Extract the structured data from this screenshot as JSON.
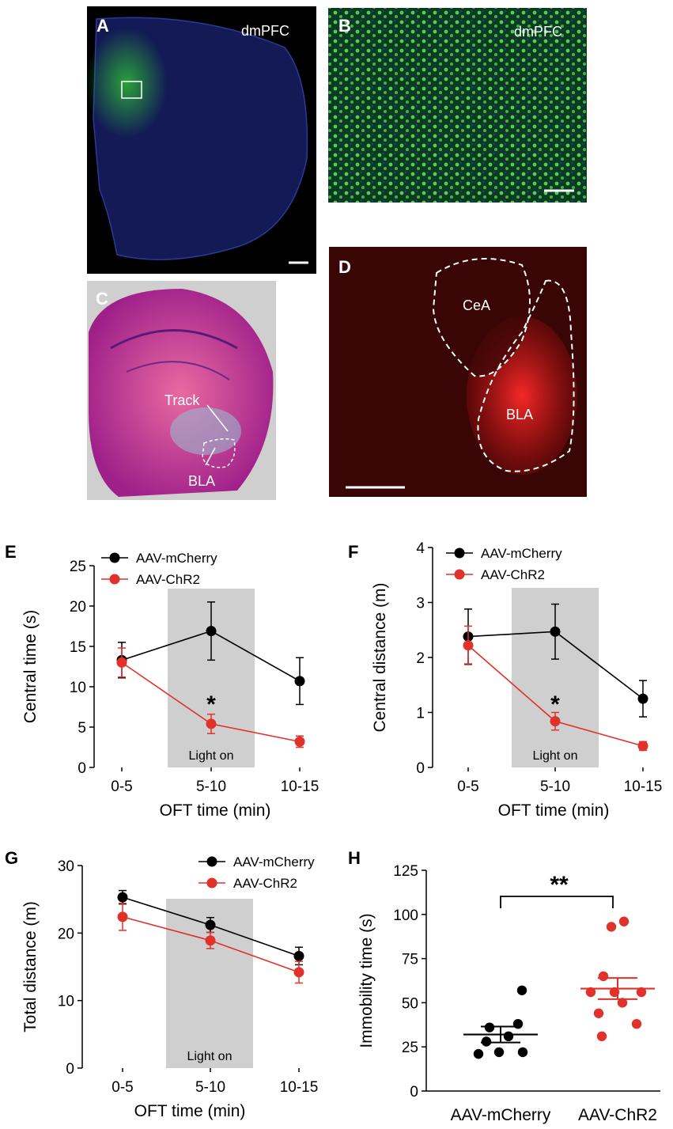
{
  "colors": {
    "control": "#000000",
    "treatment": "#e0312a",
    "shade": "#cfcfcf",
    "dapi": "#1f2f8f",
    "gfp": "#3fbf3f",
    "mcherry": "#d81818"
  },
  "images": {
    "A": {
      "letter": "A",
      "label": "dmPFC"
    },
    "B": {
      "letter": "B",
      "label": "dmPFC"
    },
    "C": {
      "letter": "C",
      "track": "Track",
      "region": "BLA"
    },
    "D": {
      "letter": "D",
      "region1": "CeA",
      "region2": "BLA"
    }
  },
  "chart_data": [
    {
      "panel": "E",
      "type": "line",
      "categories": [
        "0-5",
        "5-10",
        "10-15"
      ],
      "xlabel": "OFT time (min)",
      "ylabel": "Central time (s)",
      "ylim": [
        0,
        25
      ],
      "yticks": [
        0,
        5,
        10,
        15,
        20,
        25
      ],
      "shade_label": "Light on",
      "series": [
        {
          "name": "AAV-mCherry",
          "values": [
            13.3,
            16.9,
            10.7
          ],
          "err": [
            2.2,
            3.6,
            2.9
          ]
        },
        {
          "name": "AAV-ChR2",
          "values": [
            13.0,
            5.4,
            3.2
          ],
          "err": [
            1.8,
            1.2,
            0.7
          ]
        }
      ],
      "annotations": [
        {
          "category": "5-10",
          "text": "*"
        }
      ]
    },
    {
      "panel": "F",
      "type": "line",
      "categories": [
        "0-5",
        "5-10",
        "10-15"
      ],
      "xlabel": "OFT time (min)",
      "ylabel": "Central distance (m)",
      "ylim": [
        0,
        4
      ],
      "yticks": [
        0,
        1,
        2,
        3,
        4
      ],
      "shade_label": "Light on",
      "series": [
        {
          "name": "AAV-mCherry",
          "values": [
            2.38,
            2.47,
            1.25
          ],
          "err": [
            0.5,
            0.5,
            0.33
          ]
        },
        {
          "name": "AAV-ChR2",
          "values": [
            2.22,
            0.84,
            0.39
          ],
          "err": [
            0.35,
            0.16,
            0.08
          ]
        }
      ],
      "annotations": [
        {
          "category": "5-10",
          "text": "*"
        }
      ]
    },
    {
      "panel": "G",
      "type": "line",
      "categories": [
        "0-5",
        "5-10",
        "10-15"
      ],
      "xlabel": "OFT time (min)",
      "ylabel": "Total distance (m)",
      "ylim": [
        0,
        30
      ],
      "yticks": [
        0,
        10,
        20,
        30
      ],
      "shade_label": "Light on",
      "series": [
        {
          "name": "AAV-mCherry",
          "values": [
            25.3,
            21.2,
            16.6
          ],
          "err": [
            1.0,
            1.1,
            1.3
          ]
        },
        {
          "name": "AAV-ChR2",
          "values": [
            22.4,
            18.9,
            14.2
          ],
          "err": [
            2.0,
            1.2,
            1.6
          ]
        }
      ],
      "annotations": []
    },
    {
      "panel": "H",
      "type": "scatter",
      "categories": [
        "AAV-mCherry",
        "AAV-ChR2"
      ],
      "ylabel": "Immobility time (s)",
      "ylim": [
        0,
        125
      ],
      "yticks": [
        0,
        25,
        50,
        75,
        100,
        125
      ],
      "series": [
        {
          "name": "AAV-mCherry",
          "points": [
            57,
            36,
            38,
            28,
            31,
            21,
            22,
            22
          ],
          "mean": 32,
          "sem": 4.5
        },
        {
          "name": "AAV-ChR2",
          "points": [
            93,
            96,
            65,
            56,
            56,
            56,
            50,
            44,
            38,
            31
          ],
          "mean": 58,
          "sem": 6
        }
      ],
      "annotations": [
        {
          "text": "**"
        }
      ]
    }
  ]
}
